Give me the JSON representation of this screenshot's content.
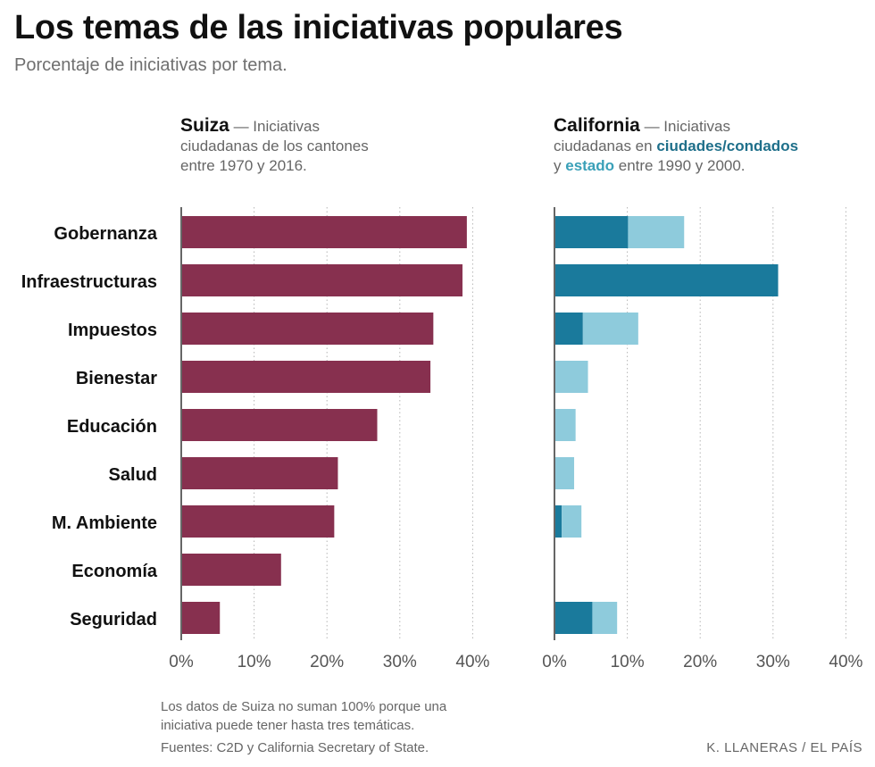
{
  "header": {
    "title": "Los temas de las iniciativas populares",
    "subtitle": "Porcentaje de iniciativas por tema."
  },
  "panels": {
    "left": {
      "name": "Suiza",
      "desc_1": " — Iniciativas",
      "desc_2": "ciudadanas de los cantones",
      "desc_3": "entre 1970 y 2016."
    },
    "right": {
      "name": "California",
      "desc_1": " — Iniciativas",
      "desc_2": "ciudadanas en ",
      "key_dark": "ciudades/condados",
      "desc_3a": "y ",
      "key_light": "estado",
      "desc_3b": " entre 1990 y 2000."
    }
  },
  "chart_data": [
    {
      "type": "bar",
      "title": "Suiza",
      "orientation": "horizontal",
      "categories": [
        "Gobernanza",
        "Infraestructuras",
        "Impuestos",
        "Bienestar",
        "Educación",
        "Salud",
        "M. Ambiente",
        "Economía",
        "Seguridad"
      ],
      "series": [
        {
          "name": "Suiza",
          "color": "#87304f",
          "values": [
            39.2,
            38.6,
            34.6,
            34.2,
            26.9,
            21.5,
            21.0,
            13.7,
            5.3
          ]
        }
      ],
      "xlim": [
        0,
        40
      ],
      "xticks": [
        "0%",
        "10%",
        "20%",
        "30%",
        "40%"
      ],
      "grid": true
    },
    {
      "type": "bar",
      "title": "California",
      "orientation": "horizontal",
      "stacked": true,
      "categories": [
        "Gobernanza",
        "Infraestructuras",
        "Impuestos",
        "Bienestar",
        "Educación",
        "Salud",
        "M. Ambiente",
        "Economía",
        "Seguridad"
      ],
      "series": [
        {
          "name": "ciudades/condados",
          "color": "#1a7a9c",
          "values": [
            10.1,
            30.7,
            3.9,
            0,
            0,
            0,
            1.0,
            0,
            5.2
          ]
        },
        {
          "name": "estado",
          "color": "#8ecbdc",
          "values": [
            7.7,
            0,
            7.6,
            4.6,
            2.9,
            2.7,
            2.7,
            0,
            3.4
          ]
        }
      ],
      "xlim": [
        0,
        40
      ],
      "xticks": [
        "0%",
        "10%",
        "20%",
        "30%",
        "40%"
      ],
      "grid": true
    }
  ],
  "footer": {
    "note_line1": "Los datos de Suiza no suman 100% porque una",
    "note_line2": "iniciativa puede tener hasta tres temáticas.",
    "sources": "Fuentes: C2D y California Secretary of State.",
    "credit": "K. LLANERAS  /  EL PAÍS"
  }
}
